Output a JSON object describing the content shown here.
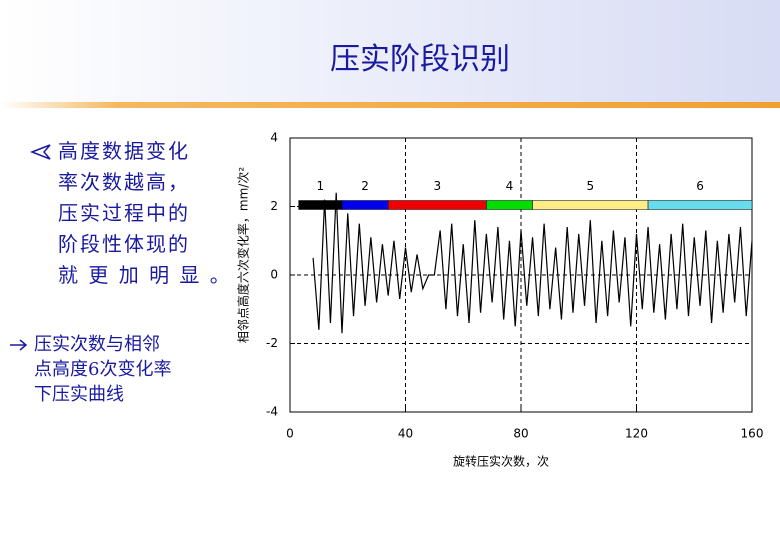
{
  "title": "压实阶段识别",
  "bullets": [
    [
      "高度数据变化",
      "率次数越高，",
      "压实过程中的",
      "阶段性体现的",
      "就 更 加 明 显 。"
    ],
    [
      "压实次数与相邻",
      "点高度6次变化率",
      "下压实曲线"
    ]
  ],
  "chart_data": {
    "type": "line",
    "xlabel": "旋转压实次数，次",
    "ylabel": "相邻点高度六次变化率，mm/次²",
    "xlim": [
      0,
      160
    ],
    "xticks": [
      0,
      40,
      80,
      120,
      160
    ],
    "ylim": [
      -4,
      4
    ],
    "yticks": [
      4,
      2,
      0,
      -2,
      -4
    ],
    "grid": true,
    "color": "#000000",
    "stages": [
      {
        "label": "1",
        "start": 3,
        "end": 18,
        "color": "#000000"
      },
      {
        "label": "2",
        "start": 18,
        "end": 34,
        "color": "#0000ee"
      },
      {
        "label": "3",
        "start": 34,
        "end": 68,
        "color": "#ee0000"
      },
      {
        "label": "4",
        "start": 68,
        "end": 84,
        "color": "#00dd00"
      },
      {
        "label": "5",
        "start": 84,
        "end": 124,
        "color": "#ffee88"
      },
      {
        "label": "6",
        "start": 124,
        "end": 160,
        "color": "#66ddee"
      }
    ],
    "x": [
      8,
      10,
      12,
      14,
      16,
      18,
      20,
      22,
      24,
      26,
      28,
      30,
      32,
      34,
      36,
      38,
      40,
      42,
      44,
      46,
      48,
      50,
      52,
      54,
      56,
      58,
      60,
      62,
      64,
      66,
      68,
      70,
      72,
      74,
      76,
      78,
      80,
      82,
      84,
      86,
      88,
      90,
      92,
      94,
      96,
      98,
      100,
      102,
      104,
      106,
      108,
      110,
      112,
      114,
      116,
      118,
      120,
      122,
      124,
      126,
      128,
      130,
      132,
      134,
      136,
      138,
      140,
      142,
      144,
      146,
      148,
      150,
      152,
      154,
      156,
      158,
      160
    ],
    "values": [
      0.5,
      -1.6,
      2.2,
      -1.4,
      2.4,
      -1.7,
      1.8,
      -1.2,
      1.5,
      -0.9,
      1.1,
      -0.8,
      0.9,
      -0.6,
      1.0,
      -0.7,
      0.8,
      -0.5,
      0.6,
      -0.4,
      0,
      0,
      1.3,
      -1.0,
      1.5,
      -1.2,
      0.9,
      -1.4,
      1.6,
      -1.1,
      1.2,
      -0.8,
      1.4,
      -1.3,
      1.0,
      -1.5,
      1.3,
      -0.9,
      1.1,
      -1.2,
      1.5,
      -1.0,
      0.8,
      -1.3,
      1.4,
      -1.1,
      1.2,
      -0.9,
      1.6,
      -1.4,
      1.0,
      -1.2,
      1.3,
      -0.8,
      1.1,
      -1.5,
      1.2,
      -1.0,
      1.4,
      -1.1,
      0.9,
      -1.3,
      1.2,
      -1.0,
      1.5,
      -1.2,
      1.1,
      -0.9,
      1.3,
      -1.4,
      1.0,
      -1.1,
      1.2,
      -0.8,
      1.4,
      -1.2,
      1.0
    ]
  }
}
